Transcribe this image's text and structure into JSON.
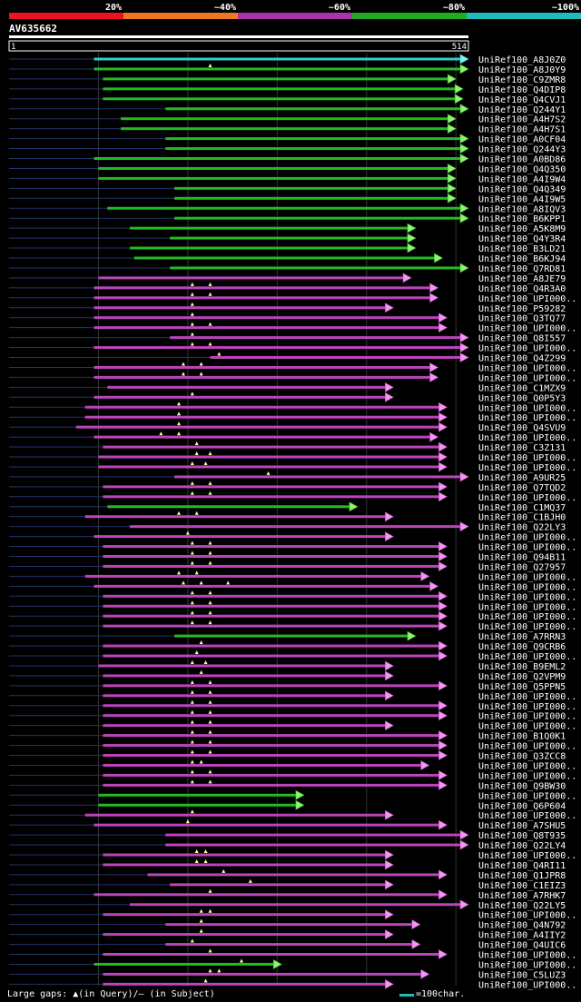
{
  "identity_scale": {
    "labels": [
      "20%",
      "~40%",
      "~60%",
      "~80%",
      "~100%"
    ],
    "colors": [
      "#ee1122",
      "#ee7722",
      "#aa33aa",
      "#22aa22",
      "#22bbbb"
    ]
  },
  "query": {
    "name": "AV635662",
    "start_label": "1",
    "end_label": "514",
    "length": 514
  },
  "colors": {
    "cyan": "#33cccc",
    "green": "#22bb22",
    "magenta": "#bb44bb",
    "tail_cyan": "#88eeee",
    "tail_green": "#99ee77",
    "tail_magenta": "#ee99ee",
    "gap_line": "#223366",
    "gridline": "#333333",
    "gap_marker": "#ffffaa"
  },
  "hits": [
    {
      "name": "UniRef100_A8J0Z0",
      "color": "cyan",
      "start": 95,
      "end": 514,
      "markers": []
    },
    {
      "name": "UniRef100_A8J0Y9",
      "color": "green",
      "start": 95,
      "end": 514,
      "markers": [
        225
      ]
    },
    {
      "name": "UniRef100_C9ZMR8",
      "color": "green",
      "start": 105,
      "end": 500,
      "markers": []
    },
    {
      "name": "UniRef100_Q4DIP8",
      "color": "green",
      "start": 105,
      "end": 508,
      "markers": []
    },
    {
      "name": "UniRef100_Q4CVJ1",
      "color": "green",
      "start": 105,
      "end": 508,
      "markers": []
    },
    {
      "name": "UniRef100_Q244Y1",
      "color": "green",
      "start": 175,
      "end": 514,
      "markers": []
    },
    {
      "name": "UniRef100_A4H7S2",
      "color": "green",
      "start": 125,
      "end": 500,
      "markers": []
    },
    {
      "name": "UniRef100_A4H7S1",
      "color": "green",
      "start": 125,
      "end": 500,
      "markers": []
    },
    {
      "name": "UniRef100_A0CF04",
      "color": "green",
      "start": 175,
      "end": 514,
      "markers": []
    },
    {
      "name": "UniRef100_Q244Y3",
      "color": "green",
      "start": 175,
      "end": 514,
      "markers": []
    },
    {
      "name": "UniRef100_A0BD86",
      "color": "green",
      "start": 95,
      "end": 514,
      "markers": []
    },
    {
      "name": "UniRef100_Q4Q350",
      "color": "green",
      "start": 100,
      "end": 500,
      "markers": []
    },
    {
      "name": "UniRef100_A4I9W4",
      "color": "green",
      "start": 100,
      "end": 500,
      "markers": []
    },
    {
      "name": "UniRef100_Q4Q349",
      "color": "green",
      "start": 185,
      "end": 500,
      "markers": []
    },
    {
      "name": "UniRef100_A4I9W5",
      "color": "green",
      "start": 185,
      "end": 500,
      "markers": []
    },
    {
      "name": "UniRef100_A8IQV3",
      "color": "green",
      "start": 110,
      "end": 514,
      "markers": []
    },
    {
      "name": "UniRef100_B6KPP1",
      "color": "green",
      "start": 185,
      "end": 514,
      "markers": []
    },
    {
      "name": "UniRef100_A5K8M9",
      "color": "green",
      "start": 135,
      "end": 455,
      "markers": []
    },
    {
      "name": "UniRef100_Q4Y3R4",
      "color": "green",
      "start": 180,
      "end": 455,
      "markers": []
    },
    {
      "name": "UniRef100_B3LD21",
      "color": "green",
      "start": 135,
      "end": 455,
      "markers": []
    },
    {
      "name": "UniRef100_B6KJ94",
      "color": "green",
      "start": 140,
      "end": 485,
      "markers": []
    },
    {
      "name": "UniRef100_Q7RD81",
      "color": "green",
      "start": 180,
      "end": 514,
      "markers": []
    },
    {
      "name": "UniRef100_A8JE79",
      "color": "magenta",
      "start": 100,
      "end": 450,
      "markers": []
    },
    {
      "name": "UniRef100_Q4R3A0",
      "color": "magenta",
      "start": 95,
      "end": 480,
      "markers": [
        205,
        225
      ]
    },
    {
      "name": "UniRef100_UPI000..",
      "color": "magenta",
      "start": 95,
      "end": 480,
      "markers": [
        205,
        225
      ]
    },
    {
      "name": "UniRef100_P59282",
      "color": "magenta",
      "start": 95,
      "end": 430,
      "markers": [
        205
      ]
    },
    {
      "name": "UniRef100_Q3TQ77",
      "color": "magenta",
      "start": 95,
      "end": 490,
      "markers": [
        205
      ]
    },
    {
      "name": "UniRef100_UPI000..",
      "color": "magenta",
      "start": 95,
      "end": 490,
      "markers": [
        205,
        225
      ]
    },
    {
      "name": "UniRef100_Q8I557",
      "color": "magenta",
      "start": 180,
      "end": 514,
      "markers": [
        205
      ]
    },
    {
      "name": "UniRef100_UPI000..",
      "color": "magenta",
      "start": 95,
      "end": 514,
      "markers": [
        205,
        225
      ]
    },
    {
      "name": "UniRef100_Q4Z299",
      "color": "magenta",
      "start": 225,
      "end": 514,
      "markers": [
        235
      ]
    },
    {
      "name": "UniRef100_UPI000..",
      "color": "magenta",
      "start": 95,
      "end": 480,
      "markers": [
        195,
        215
      ]
    },
    {
      "name": "UniRef100_UPI000..",
      "color": "magenta",
      "start": 95,
      "end": 480,
      "markers": [
        195,
        215
      ]
    },
    {
      "name": "UniRef100_C1MZX9",
      "color": "magenta",
      "start": 110,
      "end": 430,
      "markers": []
    },
    {
      "name": "UniRef100_Q0P5Y3",
      "color": "magenta",
      "start": 95,
      "end": 430,
      "markers": [
        205
      ]
    },
    {
      "name": "UniRef100_UPI000..",
      "color": "magenta",
      "start": 85,
      "end": 490,
      "markers": [
        190
      ]
    },
    {
      "name": "UniRef100_UPI000..",
      "color": "magenta",
      "start": 85,
      "end": 490,
      "markers": [
        190
      ]
    },
    {
      "name": "UniRef100_Q4SVU9",
      "color": "magenta",
      "start": 75,
      "end": 490,
      "markers": [
        190
      ]
    },
    {
      "name": "UniRef100_UPI000..",
      "color": "magenta",
      "start": 95,
      "end": 480,
      "markers": [
        170,
        190
      ]
    },
    {
      "name": "UniRef100_C3Z131",
      "color": "magenta",
      "start": 105,
      "end": 490,
      "markers": [
        210
      ]
    },
    {
      "name": "UniRef100_UPI000..",
      "color": "magenta",
      "start": 100,
      "end": 490,
      "markers": [
        210,
        225
      ]
    },
    {
      "name": "UniRef100_UPI000..",
      "color": "magenta",
      "start": 100,
      "end": 490,
      "markers": [
        205,
        220
      ]
    },
    {
      "name": "UniRef100_A9UR25",
      "color": "magenta",
      "start": 185,
      "end": 514,
      "markers": [
        290
      ]
    },
    {
      "name": "UniRef100_Q7TQD2",
      "color": "magenta",
      "start": 105,
      "end": 490,
      "markers": [
        205,
        225
      ]
    },
    {
      "name": "UniRef100_UPI000..",
      "color": "magenta",
      "start": 105,
      "end": 490,
      "markers": [
        205,
        225
      ]
    },
    {
      "name": "UniRef100_C1MQ37",
      "color": "green",
      "start": 110,
      "end": 390,
      "markers": []
    },
    {
      "name": "UniRef100_C1BJH0",
      "color": "magenta",
      "start": 85,
      "end": 430,
      "markers": [
        190,
        210
      ]
    },
    {
      "name": "UniRef100_Q22LY3",
      "color": "magenta",
      "start": 135,
      "end": 514,
      "markers": []
    },
    {
      "name": "UniRef100_UPI000..",
      "color": "magenta",
      "start": 95,
      "end": 430,
      "markers": [
        200
      ]
    },
    {
      "name": "UniRef100_UPI000..",
      "color": "magenta",
      "start": 105,
      "end": 490,
      "markers": [
        205,
        225
      ]
    },
    {
      "name": "UniRef100_Q94B11",
      "color": "magenta",
      "start": 105,
      "end": 490,
      "markers": [
        205,
        225
      ]
    },
    {
      "name": "UniRef100_Q27957",
      "color": "magenta",
      "start": 105,
      "end": 490,
      "markers": [
        205,
        225
      ]
    },
    {
      "name": "UniRef100_UPI000..",
      "color": "magenta",
      "start": 85,
      "end": 470,
      "markers": [
        190,
        210
      ]
    },
    {
      "name": "UniRef100_UPI000..",
      "color": "magenta",
      "start": 95,
      "end": 480,
      "markers": [
        195,
        215,
        245
      ]
    },
    {
      "name": "UniRef100_UPI000..",
      "color": "magenta",
      "start": 105,
      "end": 490,
      "markers": [
        205,
        225
      ]
    },
    {
      "name": "UniRef100_UPI000..",
      "color": "magenta",
      "start": 105,
      "end": 490,
      "markers": [
        205,
        225
      ]
    },
    {
      "name": "UniRef100_UPI000..",
      "color": "magenta",
      "start": 105,
      "end": 490,
      "markers": [
        205,
        225
      ]
    },
    {
      "name": "UniRef100_UPI000..",
      "color": "magenta",
      "start": 105,
      "end": 490,
      "markers": [
        205,
        225
      ]
    },
    {
      "name": "UniRef100_A7RRN3",
      "color": "green",
      "start": 185,
      "end": 455,
      "markers": []
    },
    {
      "name": "UniRef100_Q9CRB6",
      "color": "magenta",
      "start": 105,
      "end": 490,
      "markers": [
        215
      ]
    },
    {
      "name": "UniRef100_UPI000..",
      "color": "magenta",
      "start": 105,
      "end": 490,
      "markers": [
        210
      ]
    },
    {
      "name": "UniRef100_B9EML2",
      "color": "magenta",
      "start": 100,
      "end": 430,
      "markers": [
        205,
        220
      ]
    },
    {
      "name": "UniRef100_Q2VPM9",
      "color": "magenta",
      "start": 105,
      "end": 430,
      "markers": [
        215
      ]
    },
    {
      "name": "UniRef100_Q5PPN5",
      "color": "magenta",
      "start": 105,
      "end": 490,
      "markers": [
        205,
        225
      ]
    },
    {
      "name": "UniRef100_UPI000..",
      "color": "magenta",
      "start": 105,
      "end": 430,
      "markers": [
        205,
        225
      ]
    },
    {
      "name": "UniRef100_UPI000..",
      "color": "magenta",
      "start": 105,
      "end": 490,
      "markers": [
        205,
        225
      ]
    },
    {
      "name": "UniRef100_UPI000..",
      "color": "magenta",
      "start": 105,
      "end": 490,
      "markers": [
        205,
        225
      ]
    },
    {
      "name": "UniRef100_UPI000..",
      "color": "magenta",
      "start": 105,
      "end": 430,
      "markers": [
        205,
        225
      ]
    },
    {
      "name": "UniRef100_B1Q0K1",
      "color": "magenta",
      "start": 105,
      "end": 490,
      "markers": [
        205,
        225
      ]
    },
    {
      "name": "UniRef100_UPI000..",
      "color": "magenta",
      "start": 105,
      "end": 490,
      "markers": [
        205,
        225
      ]
    },
    {
      "name": "UniRef100_Q3ZCC8",
      "color": "magenta",
      "start": 105,
      "end": 490,
      "markers": [
        205,
        225
      ]
    },
    {
      "name": "UniRef100_UPI000..",
      "color": "magenta",
      "start": 105,
      "end": 470,
      "markers": [
        205,
        215
      ]
    },
    {
      "name": "UniRef100_UPI000..",
      "color": "magenta",
      "start": 105,
      "end": 490,
      "markers": [
        205,
        225
      ]
    },
    {
      "name": "UniRef100_Q9BW30",
      "color": "magenta",
      "start": 105,
      "end": 490,
      "markers": [
        205,
        225
      ]
    },
    {
      "name": "UniRef100_UPI000..",
      "color": "green",
      "start": 100,
      "end": 330,
      "markers": []
    },
    {
      "name": "UniRef100_Q6P604",
      "color": "green",
      "start": 100,
      "end": 330,
      "markers": []
    },
    {
      "name": "UniRef100_UPI000..",
      "color": "magenta",
      "start": 85,
      "end": 430,
      "markers": [
        205
      ]
    },
    {
      "name": "UniRef100_A7SHU5",
      "color": "magenta",
      "start": 95,
      "end": 490,
      "markers": [
        200
      ]
    },
    {
      "name": "UniRef100_Q8T935",
      "color": "magenta",
      "start": 175,
      "end": 514,
      "markers": []
    },
    {
      "name": "UniRef100_Q22LY4",
      "color": "magenta",
      "start": 175,
      "end": 514,
      "markers": []
    },
    {
      "name": "UniRef100_UPI000..",
      "color": "magenta",
      "start": 105,
      "end": 430,
      "markers": [
        210,
        220
      ]
    },
    {
      "name": "UniRef100_Q4RI11",
      "color": "magenta",
      "start": 105,
      "end": 430,
      "markers": [
        210,
        220
      ]
    },
    {
      "name": "UniRef100_Q1JPR8",
      "color": "magenta",
      "start": 155,
      "end": 490,
      "markers": [
        240
      ]
    },
    {
      "name": "UniRef100_C1EIZ3",
      "color": "magenta",
      "start": 180,
      "end": 430,
      "markers": [
        270
      ]
    },
    {
      "name": "UniRef100_A7RHK7",
      "color": "magenta",
      "start": 95,
      "end": 490,
      "markers": [
        225
      ]
    },
    {
      "name": "UniRef100_Q22LY5",
      "color": "magenta",
      "start": 135,
      "end": 514,
      "markers": []
    },
    {
      "name": "UniRef100_UPI000..",
      "color": "magenta",
      "start": 105,
      "end": 430,
      "markers": [
        215,
        225
      ]
    },
    {
      "name": "UniRef100_Q4N792",
      "color": "magenta",
      "start": 175,
      "end": 460,
      "markers": [
        215
      ]
    },
    {
      "name": "UniRef100_A4IIY2",
      "color": "magenta",
      "start": 105,
      "end": 430,
      "markers": [
        215
      ]
    },
    {
      "name": "UniRef100_Q4UIC6",
      "color": "magenta",
      "start": 175,
      "end": 460,
      "markers": [
        205
      ]
    },
    {
      "name": "UniRef100_UPI000..",
      "color": "magenta",
      "start": 105,
      "end": 490,
      "markers": [
        225
      ]
    },
    {
      "name": "UniRef100_UPI000..",
      "color": "green",
      "start": 95,
      "end": 305,
      "markers": [
        260
      ]
    },
    {
      "name": "UniRef100_C5LUZ3",
      "color": "magenta",
      "start": 105,
      "end": 470,
      "markers": [
        225,
        235
      ]
    },
    {
      "name": "UniRef100_UPI000..",
      "color": "magenta",
      "start": 105,
      "end": 430,
      "markers": [
        220
      ]
    }
  ],
  "footer": {
    "gap_legend": "Large gaps: ▲(in Query)/— (in Subject)",
    "scale_legend": "=100char."
  }
}
